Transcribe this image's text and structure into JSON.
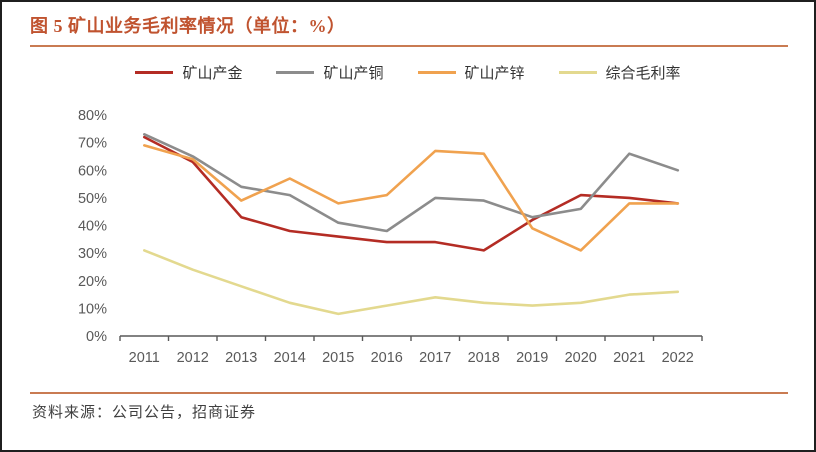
{
  "figure": {
    "title": "图 5 矿山业务毛利率情况（单位：%）",
    "title_color": "#C0532F",
    "rule_color": "#C97B52",
    "source_note": "资料来源：公司公告，招商证券",
    "axis_label_color": "#595959"
  },
  "chart_data": {
    "type": "line",
    "title": "图 5 矿山业务毛利率情况（单位：%）",
    "categories": [
      "2011",
      "2012",
      "2013",
      "2014",
      "2015",
      "2016",
      "2017",
      "2018",
      "2019",
      "2020",
      "2021",
      "2022"
    ],
    "series": [
      {
        "key": "gold",
        "name": "矿山产金",
        "color": "#B42C24",
        "values": [
          72,
          63,
          43,
          38,
          36,
          34,
          34,
          31,
          42,
          51,
          50,
          48
        ]
      },
      {
        "key": "copper",
        "name": "矿山产铜",
        "color": "#8C8C8C",
        "values": [
          73,
          65,
          54,
          51,
          41,
          38,
          50,
          49,
          43,
          46,
          66,
          60
        ]
      },
      {
        "key": "zinc",
        "name": "矿山产锌",
        "color": "#F0A24F",
        "values": [
          69,
          64,
          49,
          57,
          48,
          51,
          67,
          66,
          39,
          31,
          48,
          48
        ]
      },
      {
        "key": "overall",
        "name": "综合毛利率",
        "color": "#E3D98F",
        "values": [
          31,
          24,
          18,
          12,
          8,
          11,
          14,
          12,
          11,
          12,
          15,
          16
        ]
      }
    ],
    "xlabel": "",
    "ylabel": "",
    "ylim": [
      0,
      80
    ],
    "ytick_step": 10,
    "ytick_suffix": "%",
    "grid": false,
    "legend_position": "top"
  }
}
